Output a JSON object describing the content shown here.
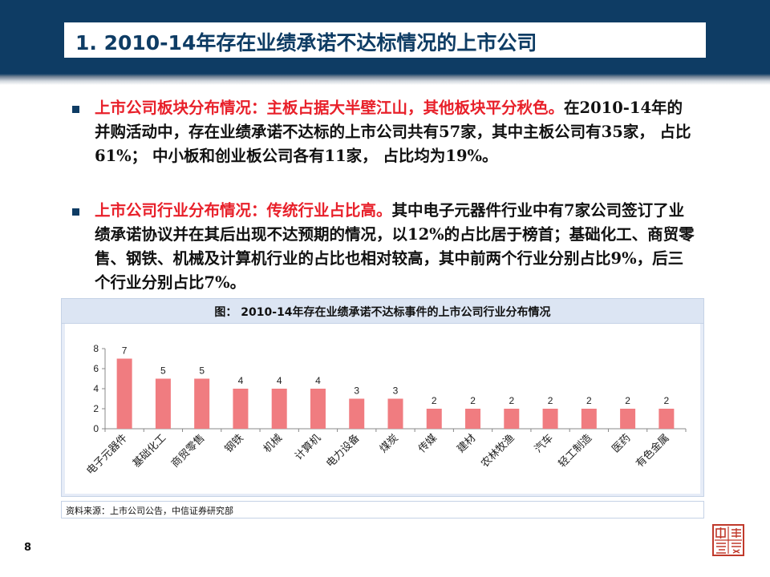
{
  "slide": {
    "title": "1. 2010-14年存在业绩承诺不达标情况的上市公司",
    "page_number": "8"
  },
  "bullets": [
    {
      "highlight": "上市公司板块分布情况：主板占据大半壁江山，其他板块平分秋色。",
      "body": "在2010-14年的并购活动中，存在业绩承诺不达标的上市公司共有57家，其中主板公司有35家， 占比61%； 中小板和创业板公司各有11家， 占比均为19%。"
    },
    {
      "highlight": "上市公司行业分布情况：传统行业占比高。",
      "body": "其中电子元器件行业中有7家公司签订了业绩承诺协议并在其后出现不达预期的情况，以12%的占比居于榜首；基础化工、商贸零售、钢铁、机械及计算机行业的占比也相对较高，其中前两个行业分别占比9%，后三个行业分别占比7%。"
    }
  ],
  "chart_title": "图： 2010-14年存在业绩承诺不达标事件的上市公司行业分布情况",
  "source": "资料来源：上市公司公告，中信证券研究部",
  "logo": {
    "text": "中信證券",
    "color": "#c0392b"
  },
  "colors": {
    "header": "#0e3c64",
    "bar": "#f07c80",
    "accent_red": "#e8202a"
  },
  "chart_data": {
    "type": "bar",
    "title": "图： 2010-14年存在业绩承诺不达标事件的上市公司行业分布情况",
    "categories": [
      "电子元器件",
      "基础化工",
      "商贸零售",
      "钢铁",
      "机械",
      "计算机",
      "电力设备",
      "煤炭",
      "传媒",
      "建材",
      "农林牧渔",
      "汽车",
      "轻工制造",
      "医药",
      "有色金属"
    ],
    "values": [
      7,
      5,
      5,
      4,
      4,
      4,
      3,
      3,
      2,
      2,
      2,
      2,
      2,
      2,
      2
    ],
    "yticks": [
      0,
      2,
      4,
      6,
      8
    ],
    "ylim": [
      0,
      8
    ],
    "data_labels": true,
    "grid": false,
    "legend": "none"
  }
}
